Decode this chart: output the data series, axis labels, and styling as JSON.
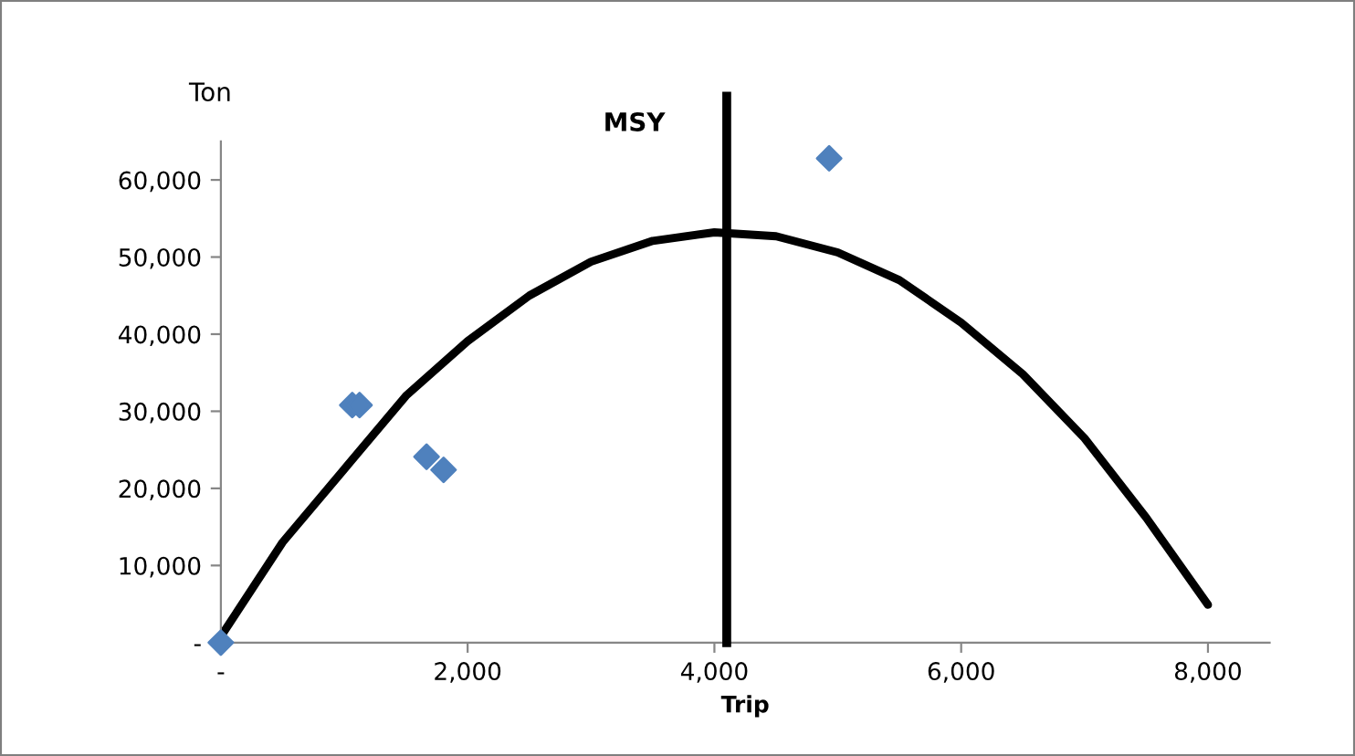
{
  "chart_data": {
    "type": "scatter",
    "xlabel": "Trip",
    "ylabel": "Ton",
    "xlim": [
      0,
      8500
    ],
    "ylim": [
      0,
      65000
    ],
    "xticks": [
      {
        "value": 0,
        "label": "-"
      },
      {
        "value": 2000,
        "label": "2,000"
      },
      {
        "value": 4000,
        "label": "4,000"
      },
      {
        "value": 6000,
        "label": "6,000"
      },
      {
        "value": 8000,
        "label": "8,000"
      }
    ],
    "yticks": [
      {
        "value": 0,
        "label": "-"
      },
      {
        "value": 10000,
        "label": "10,000"
      },
      {
        "value": 20000,
        "label": "20,000"
      },
      {
        "value": 30000,
        "label": "30,000"
      },
      {
        "value": 40000,
        "label": "40,000"
      },
      {
        "value": 50000,
        "label": "50,000"
      },
      {
        "value": 60000,
        "label": "60,000"
      }
    ],
    "grid": false,
    "legend": false,
    "series": [
      {
        "marker": "diamond",
        "color": "#4f81bd",
        "x": [
          0,
          1065,
          1124,
          1667,
          1805,
          4930
        ],
        "values": [
          0,
          30800,
          30800,
          24100,
          22400,
          62800
        ]
      },
      {
        "type": "line",
        "marker": "none",
        "color": "#000000",
        "x": [
          0,
          500,
          1000,
          1500,
          2000,
          2500,
          3000,
          3500,
          4000,
          4500,
          5000,
          5500,
          6000,
          6500,
          7000,
          7500,
          8000
        ],
        "values": [
          800,
          13000,
          22500,
          32000,
          39100,
          45000,
          49400,
          52100,
          53200,
          52700,
          50600,
          47000,
          41500,
          34800,
          26500,
          16200,
          4900
        ]
      }
    ],
    "ref_lines": [
      {
        "axis": "x",
        "value": 4100,
        "label": "MSY",
        "color": "#000000",
        "line_style": "solid"
      }
    ]
  }
}
